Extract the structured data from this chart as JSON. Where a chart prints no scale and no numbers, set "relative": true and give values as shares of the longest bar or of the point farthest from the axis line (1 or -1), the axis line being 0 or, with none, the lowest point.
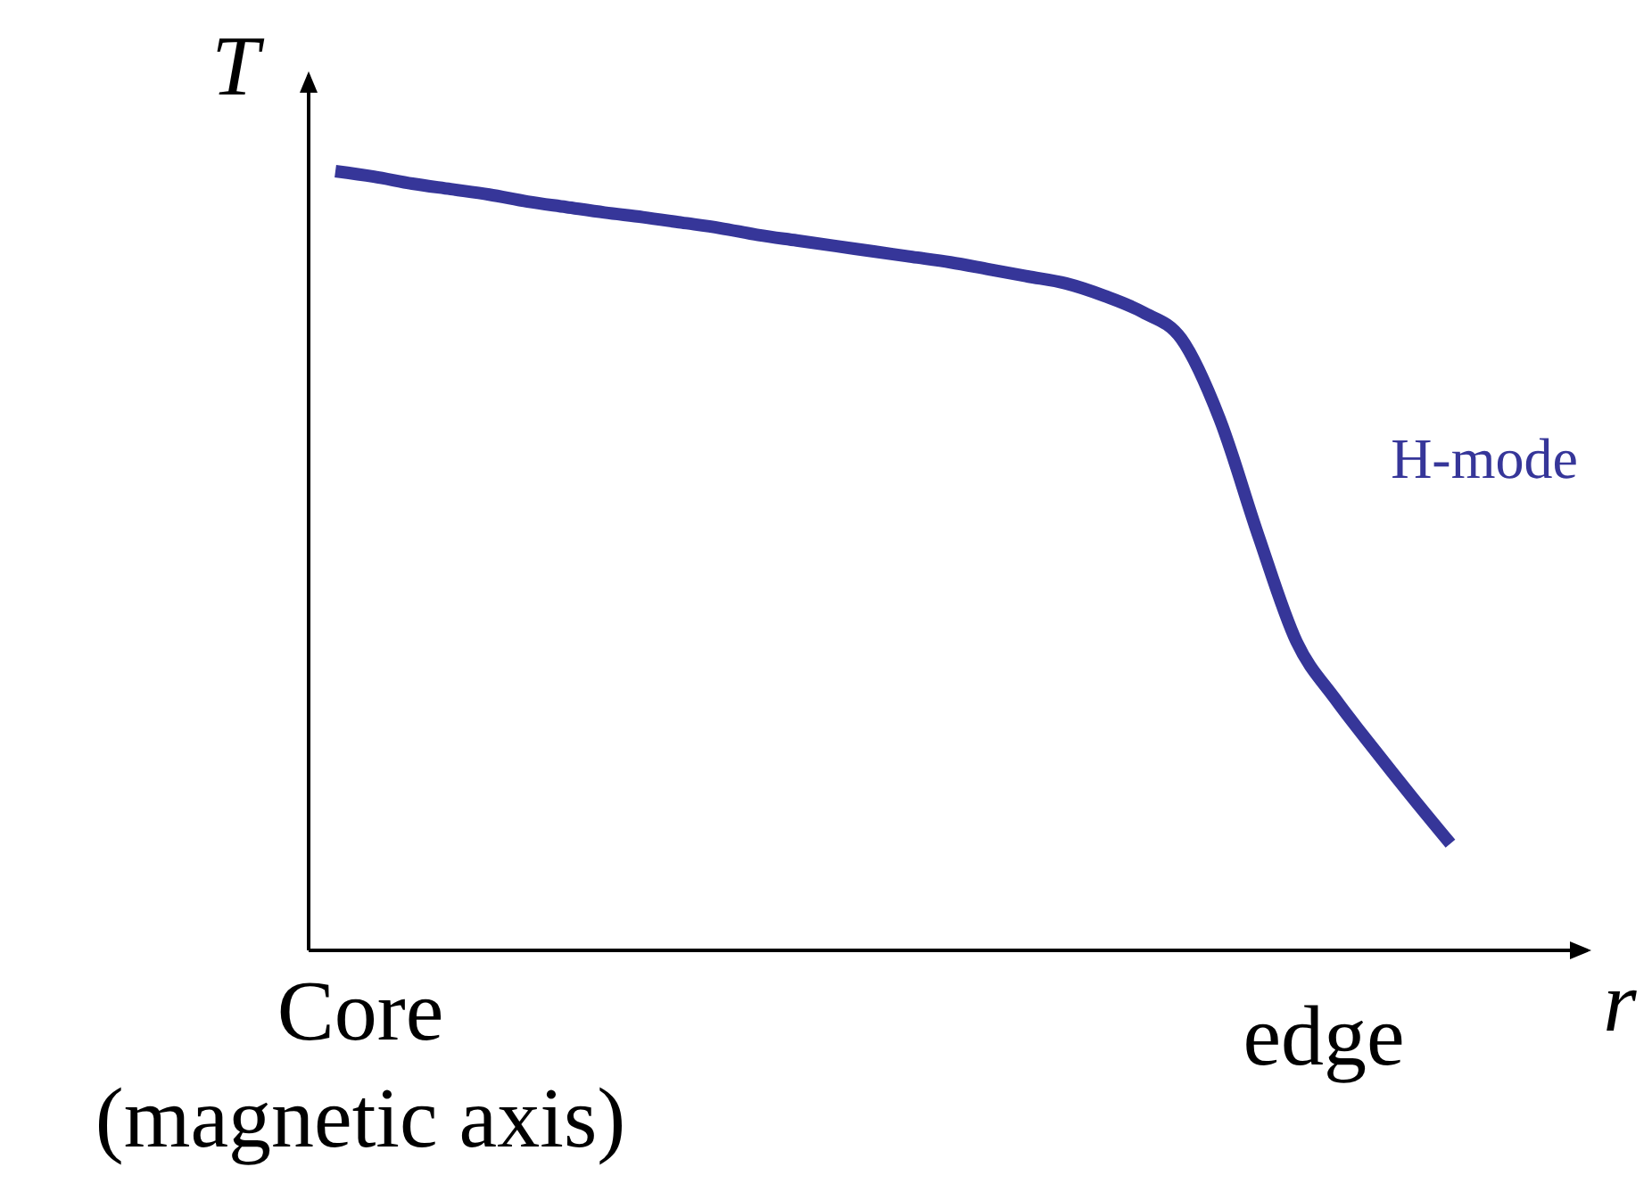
{
  "chart_data": {
    "type": "line",
    "relative": true,
    "xlabel": "r",
    "ylabel": "T",
    "categories": [
      null,
      null,
      null,
      null,
      null,
      null,
      null,
      null,
      null,
      null,
      null,
      null,
      null,
      null,
      null,
      null,
      null,
      null,
      null,
      null,
      null,
      null,
      null,
      null,
      null,
      null,
      null,
      null,
      null,
      null
    ],
    "series": [
      {
        "name": "H-mode",
        "color": "#363699",
        "values": [
          1,
          0.993,
          0.984,
          0.977,
          0.97,
          0.961,
          0.954,
          0.947,
          0.941,
          0.934,
          0.927,
          0.918,
          0.911,
          0.904,
          0.897,
          0.89,
          0.883,
          0.874,
          0.865,
          0.856,
          0.84,
          0.819,
          0.785,
          0.682,
          0.533,
          0.396,
          0.323,
          0.259,
          0.197,
          0.137
        ]
      }
    ],
    "annotations": [
      "Core",
      "(magnetic axis)",
      "edge"
    ],
    "legend": false,
    "line_style": "solid",
    "marker": "none"
  }
}
